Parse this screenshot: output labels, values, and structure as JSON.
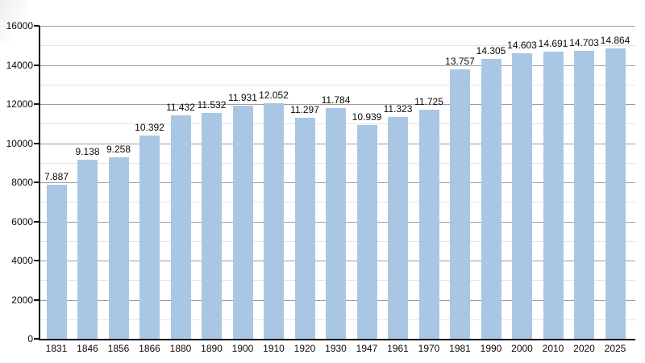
{
  "chart_data": {
    "type": "bar",
    "title": "",
    "xlabel": "",
    "ylabel": "",
    "categories": [
      "1831",
      "1846",
      "1856",
      "1866",
      "1880",
      "1890",
      "1900",
      "1910",
      "1920",
      "1930",
      "1947",
      "1961",
      "1970",
      "1981",
      "1990",
      "2000",
      "2010",
      "2020",
      "2025"
    ],
    "values": [
      7887,
      9138,
      9258,
      10392,
      11432,
      11532,
      11931,
      12052,
      11297,
      11784,
      10939,
      11323,
      11725,
      13757,
      14305,
      14603,
      14691,
      14703,
      14864
    ],
    "value_labels": [
      "7.887",
      "9.138",
      "9.258",
      "10.392",
      "11.432",
      "11.532",
      "11.931",
      "12.052",
      "11.297",
      "11.784",
      "10.939",
      "11.323",
      "11.725",
      "13.757",
      "14.305",
      "14.603",
      "14.691",
      "14.703",
      "14.864"
    ],
    "ylim": [
      0,
      16000
    ],
    "y_tick_values": [
      0,
      2000,
      4000,
      6000,
      8000,
      10000,
      12000,
      14000,
      16000
    ],
    "y_tick_labels": [
      "0",
      "2000",
      "4000",
      "6000",
      "8000",
      "10000",
      "12000",
      "14000",
      "16000"
    ],
    "y_minor_step": 1000,
    "grid": "on",
    "legend": "none",
    "colors": {
      "bar": "#a9c7e5",
      "major_grid": "#9e9e9e",
      "minor_grid": "#e4e4e4",
      "axis": "#111111",
      "text": "#0a0a0a",
      "background": "#ffffff"
    }
  }
}
